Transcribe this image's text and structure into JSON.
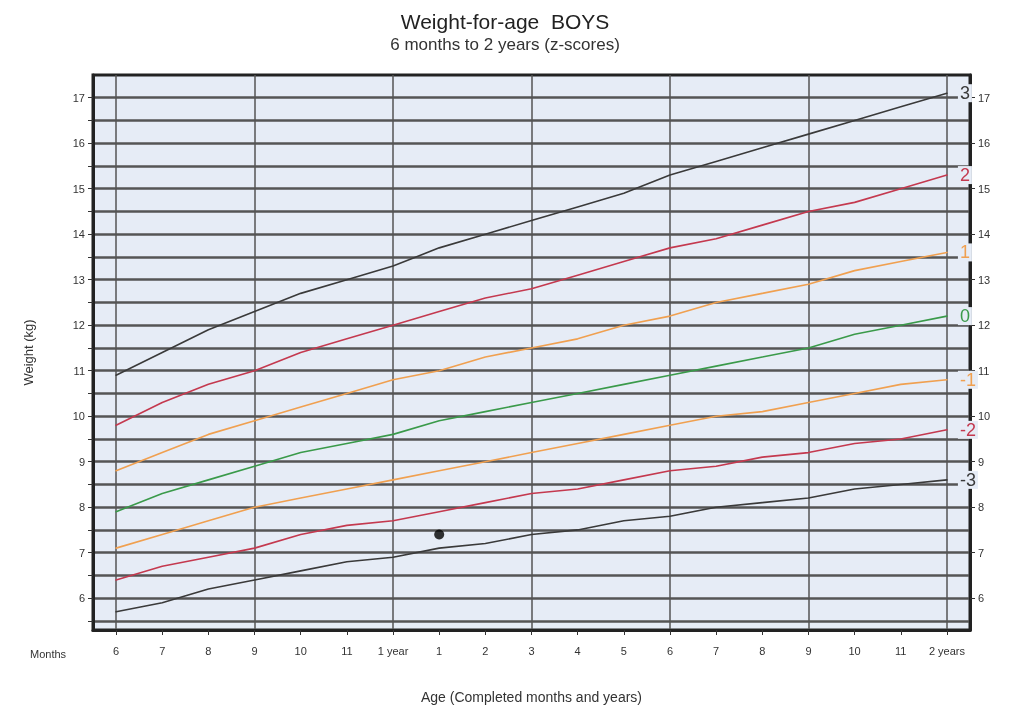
{
  "chart_data": {
    "type": "line",
    "title": "Weight-for-age  BOYS",
    "subtitle": "6 months to 2 years (z-scores)",
    "xlabel": "Age (Completed months and years)",
    "ylabel": "Weight (kg)",
    "annotations": [
      "Months"
    ],
    "categories": [
      "6",
      "7",
      "8",
      "9",
      "10",
      "11",
      "1 year",
      "1",
      "2",
      "3",
      "4",
      "5",
      "6",
      "7",
      "8",
      "9",
      "10",
      "11",
      "2 years"
    ],
    "series": [
      {
        "name": "3",
        "color": "#3a3a3a",
        "values": [
          10.9,
          11.4,
          11.9,
          12.3,
          12.7,
          13.0,
          13.3,
          13.7,
          14.0,
          14.3,
          14.6,
          14.9,
          15.3,
          15.6,
          15.9,
          16.2,
          16.5,
          16.8,
          17.1
        ]
      },
      {
        "name": "2",
        "color": "#c4394f",
        "values": [
          9.8,
          10.3,
          10.7,
          11.0,
          11.4,
          11.7,
          12.0,
          12.3,
          12.6,
          12.8,
          13.1,
          13.4,
          13.7,
          13.9,
          14.2,
          14.5,
          14.7,
          15.0,
          15.3
        ]
      },
      {
        "name": "1",
        "color": "#f0a050",
        "values": [
          8.8,
          9.2,
          9.6,
          9.9,
          10.2,
          10.5,
          10.8,
          11.0,
          11.3,
          11.5,
          11.7,
          12.0,
          12.2,
          12.5,
          12.7,
          12.9,
          13.2,
          13.4,
          13.6
        ]
      },
      {
        "name": "0",
        "color": "#3a9a4a",
        "values": [
          7.9,
          8.3,
          8.6,
          8.9,
          9.2,
          9.4,
          9.6,
          9.9,
          10.1,
          10.3,
          10.5,
          10.7,
          10.9,
          11.1,
          11.3,
          11.5,
          11.8,
          12.0,
          12.2
        ]
      },
      {
        "name": "-1",
        "color": "#f0a050",
        "values": [
          7.1,
          7.4,
          7.7,
          8.0,
          8.2,
          8.4,
          8.6,
          8.8,
          9.0,
          9.2,
          9.4,
          9.6,
          9.8,
          10.0,
          10.1,
          10.3,
          10.5,
          10.7,
          10.8
        ]
      },
      {
        "name": "-2",
        "color": "#c4394f",
        "values": [
          6.4,
          6.7,
          6.9,
          7.1,
          7.4,
          7.6,
          7.7,
          7.9,
          8.1,
          8.3,
          8.4,
          8.6,
          8.8,
          8.9,
          9.1,
          9.2,
          9.4,
          9.5,
          9.7
        ]
      },
      {
        "name": "-3",
        "color": "#3a3a3a",
        "values": [
          5.7,
          5.9,
          6.2,
          6.4,
          6.6,
          6.8,
          6.9,
          7.1,
          7.2,
          7.4,
          7.5,
          7.7,
          7.8,
          8.0,
          8.1,
          8.2,
          8.4,
          8.5,
          8.6
        ]
      },
      {
        "type": "scatter",
        "color": "#000000",
        "marker": "circle",
        "x": [
          "1"
        ],
        "values": [
          7.4
        ]
      }
    ],
    "ylim": [
      5.3,
      17.5
    ],
    "yticks": [
      {
        "value": 5.5,
        "label": null
      },
      6,
      {
        "value": 6.5,
        "label": null
      },
      7,
      {
        "value": 7.5,
        "label": null
      },
      8,
      {
        "value": 8.5,
        "label": null
      },
      9,
      {
        "value": 9.5,
        "label": null
      },
      10,
      {
        "value": 10.5,
        "label": null
      },
      11,
      {
        "value": 11.5,
        "label": null
      },
      12,
      {
        "value": 12.5,
        "label": null
      },
      13,
      {
        "value": 13.5,
        "label": null
      },
      14,
      {
        "value": 14.5,
        "label": null
      },
      15,
      {
        "value": 15.5,
        "label": null
      },
      16,
      {
        "value": 16.5,
        "label": null
      },
      17
    ],
    "y2lim": [
      5.3,
      17.5
    ],
    "y2ticks": [
      6,
      7,
      8,
      9,
      10,
      11,
      12,
      13,
      14,
      15,
      16,
      17
    ],
    "grid": true,
    "legend": false,
    "marker": "none",
    "line_style": "solid"
  }
}
